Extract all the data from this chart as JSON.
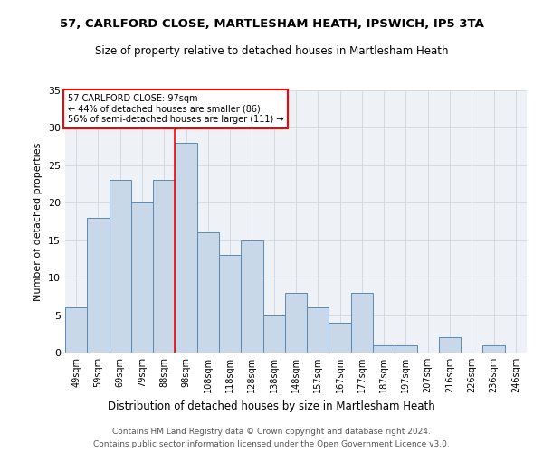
{
  "title1": "57, CARLFORD CLOSE, MARTLESHAM HEATH, IPSWICH, IP5 3TA",
  "title2": "Size of property relative to detached houses in Martlesham Heath",
  "xlabel": "Distribution of detached houses by size in Martlesham Heath",
  "ylabel": "Number of detached properties",
  "footer1": "Contains HM Land Registry data © Crown copyright and database right 2024.",
  "footer2": "Contains public sector information licensed under the Open Government Licence v3.0.",
  "bar_labels": [
    "49sqm",
    "59sqm",
    "69sqm",
    "79sqm",
    "88sqm",
    "98sqm",
    "108sqm",
    "118sqm",
    "128sqm",
    "138sqm",
    "148sqm",
    "157sqm",
    "167sqm",
    "177sqm",
    "187sqm",
    "197sqm",
    "207sqm",
    "216sqm",
    "226sqm",
    "236sqm",
    "246sqm"
  ],
  "bar_values": [
    6,
    18,
    23,
    20,
    23,
    28,
    16,
    13,
    15,
    5,
    8,
    6,
    4,
    8,
    1,
    1,
    0,
    2,
    0,
    1,
    0
  ],
  "bar_color": "#c8d8e8",
  "bar_edge_color": "#5a8ab5",
  "reference_line_x": 5,
  "annotation_text": "57 CARLFORD CLOSE: 97sqm\n← 44% of detached houses are smaller (86)\n56% of semi-detached houses are larger (111) →",
  "annotation_box_color": "white",
  "annotation_box_edge_color": "red",
  "grid_color": "#d0d8e0",
  "background_color": "#eef2f7",
  "ylim": [
    0,
    35
  ],
  "yticks": [
    0,
    5,
    10,
    15,
    20,
    25,
    30,
    35
  ]
}
